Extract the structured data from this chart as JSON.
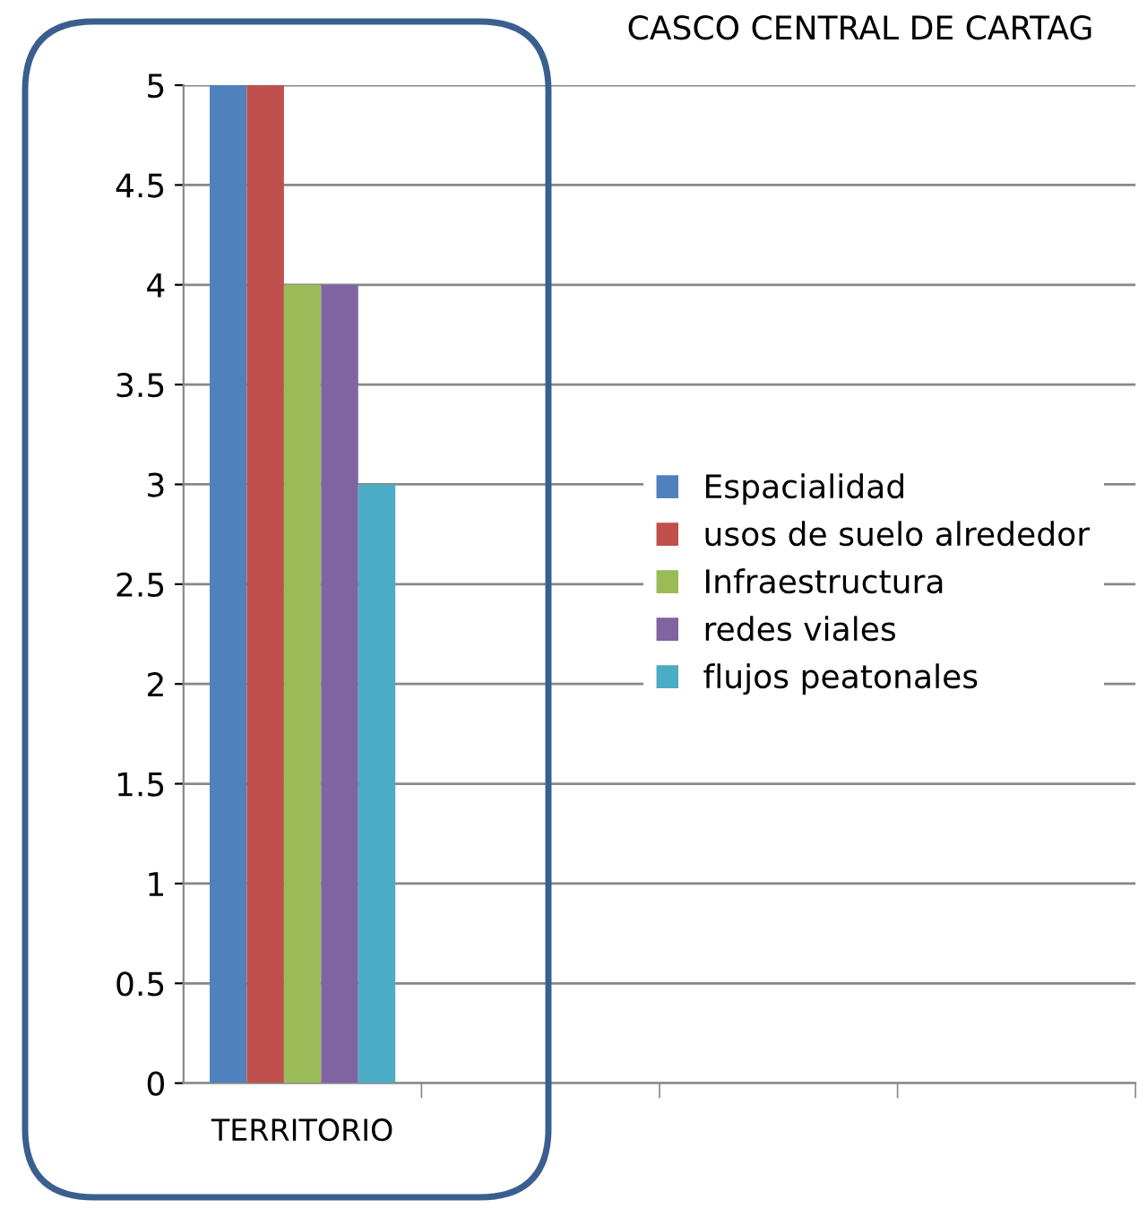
{
  "chart_data": {
    "type": "bar",
    "title": "CASCO CENTRAL DE CARTAG",
    "categories": [
      "TERRITORIO",
      null,
      null,
      null
    ],
    "series": [
      {
        "name": "Espacialidad",
        "color": "#4f81bd",
        "values": [
          5,
          null,
          null,
          null
        ]
      },
      {
        "name": "usos de suelo alrededor",
        "color": "#c0504d",
        "values": [
          5,
          null,
          null,
          null
        ]
      },
      {
        "name": "Infraestructura",
        "color": "#9bbb59",
        "values": [
          4,
          null,
          null,
          null
        ]
      },
      {
        "name": "redes viales",
        "color": "#8064a2",
        "values": [
          4,
          null,
          null,
          null
        ]
      },
      {
        "name": "flujos peatonales",
        "color": "#4bacc6",
        "values": [
          3,
          null,
          null,
          null
        ]
      }
    ],
    "ylim": [
      0,
      5
    ],
    "yticks": [
      0,
      0.5,
      1,
      1.5,
      2,
      2.5,
      3,
      3.5,
      4,
      4.5,
      5
    ],
    "grid": "y",
    "legend": "center"
  }
}
